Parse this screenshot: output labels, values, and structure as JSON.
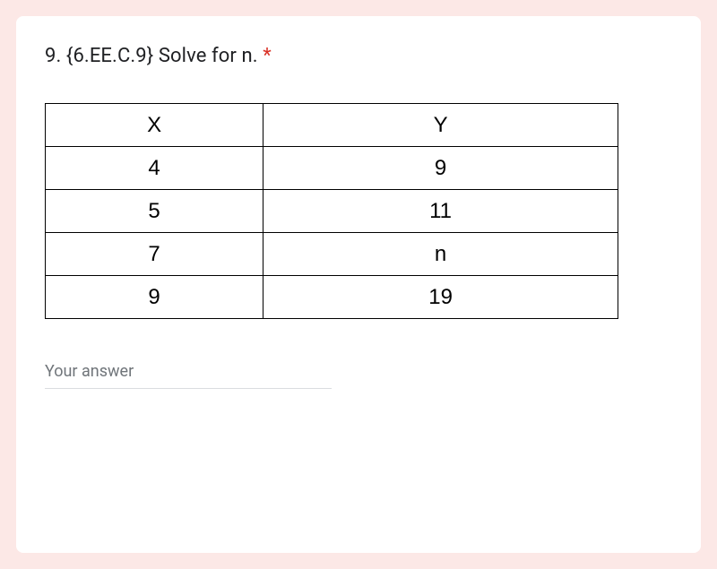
{
  "question": {
    "title": "9. {6.EE.C.9} Solve for n.",
    "required_marker": "*"
  },
  "table": {
    "type": "table",
    "columns": [
      "X",
      "Y"
    ],
    "rows": [
      [
        "4",
        "9"
      ],
      [
        "5",
        "11"
      ],
      [
        "7",
        "n"
      ],
      [
        "9",
        "19"
      ]
    ],
    "border_color": "#000000",
    "background_color": "#ffffff",
    "font_color": "#000000",
    "header_fontsize": 24,
    "cell_fontsize": 24
  },
  "answer": {
    "placeholder": "Your answer",
    "value": ""
  },
  "colors": {
    "page_bg": "#fce8e6",
    "card_bg": "#ffffff",
    "required": "#d93025",
    "text_primary": "#202124",
    "placeholder": "#70757a",
    "input_underline": "#dadce0"
  }
}
